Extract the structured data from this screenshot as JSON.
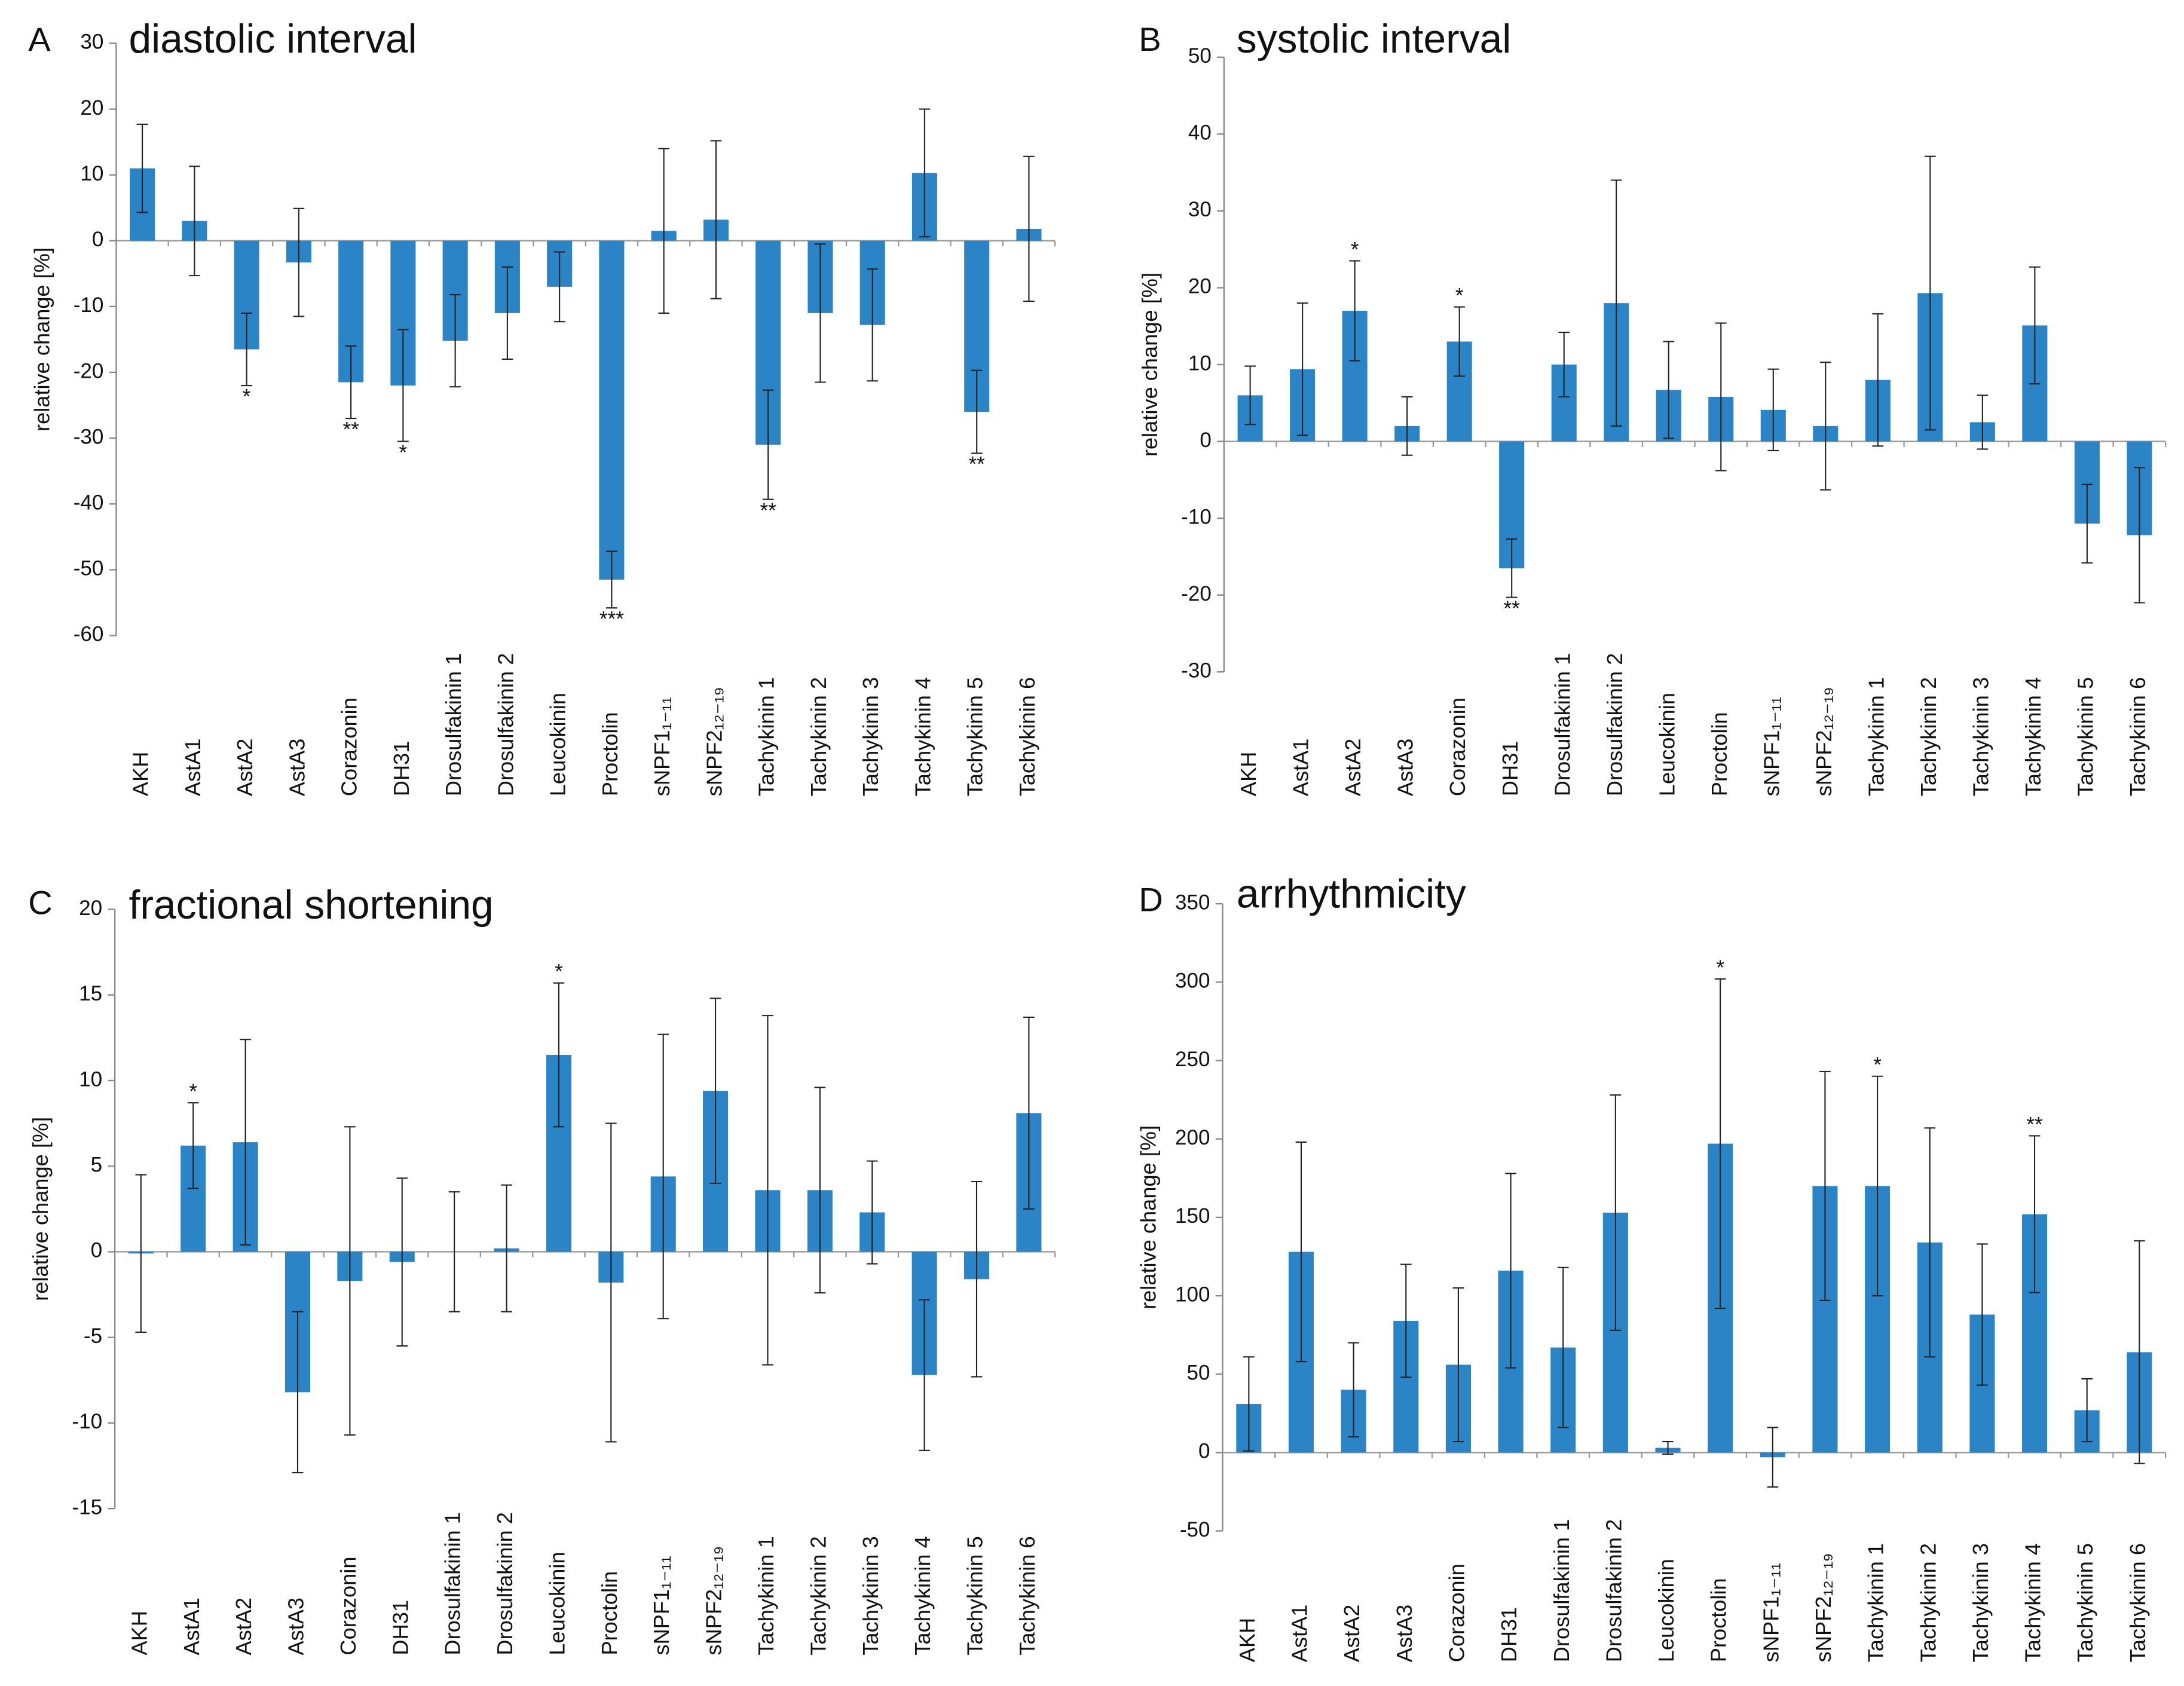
{
  "chart_data": [
    {
      "type": "bar",
      "panel": "A",
      "title": "diastolic interval",
      "y_label": "relative change [%]",
      "categories": [
        "AKH",
        "AstA1",
        "AstA2",
        "AstA3",
        "Corazonin",
        "DH31",
        "Drosulfakinin 1",
        "Drosulfakinin 2",
        "Leucokinin",
        "Proctolin",
        "sNPF1₁₋₁₁",
        "sNPF2₁₂₋₁₉",
        "Tachykinin 1",
        "Tachykinin 2",
        "Tachykinin 3",
        "Tachykinin 4",
        "Tachykinin 5",
        "Tachykinin 6"
      ],
      "series": [
        {
          "color": "#2b84c6",
          "values": [
            11,
            3,
            -16.5,
            -3.3,
            -21.5,
            -22,
            -15.2,
            -11,
            -7,
            -51.5,
            1.5,
            3.2,
            -31,
            -11,
            -12.8,
            10.3,
            -26,
            1.8
          ],
          "errors": [
            6.7,
            8.3,
            5.5,
            8.2,
            5.5,
            8.5,
            7,
            7,
            5.3,
            4.3,
            12.5,
            12,
            8.3,
            10.5,
            8.5,
            9.7,
            6.3,
            11
          ]
        }
      ],
      "significance": [
        null,
        null,
        "*",
        null,
        "**",
        "*",
        null,
        null,
        null,
        "***",
        null,
        null,
        "**",
        null,
        null,
        null,
        "**",
        null
      ],
      "ylim": [
        -60,
        30
      ],
      "yticks": [
        -60,
        -50,
        -40,
        -30,
        -20,
        -10,
        0,
        10,
        20,
        30
      ]
    },
    {
      "type": "bar",
      "panel": "B",
      "title": "systolic interval",
      "y_label": "relative change [%]",
      "categories": [
        "AKH",
        "AstA1",
        "AstA2",
        "AstA3",
        "Corazonin",
        "DH31",
        "Drosulfakinin 1",
        "Drosulfakinin 2",
        "Leucokinin",
        "Proctolin",
        "sNPF1₁₋₁₁",
        "sNPF2₁₂₋₁₉",
        "Tachykinin 1",
        "Tachykinin 2",
        "Tachykinin 3",
        "Tachykinin 4",
        "Tachykinin 5",
        "Tachykinin 6"
      ],
      "series": [
        {
          "color": "#2b84c6",
          "values": [
            6,
            9.4,
            17,
            2,
            13,
            -16.5,
            10,
            18,
            6.7,
            5.8,
            4.1,
            2,
            8,
            19.3,
            2.5,
            15.1,
            -10.7,
            -12.2
          ],
          "errors": [
            3.8,
            8.6,
            6.5,
            3.8,
            4.5,
            3.8,
            4.2,
            16,
            6.3,
            9.6,
            5.3,
            8.3,
            8.6,
            17.8,
            3.5,
            7.6,
            5.1,
            8.8
          ]
        }
      ],
      "significance": [
        null,
        null,
        "*",
        null,
        "*",
        "**",
        null,
        null,
        null,
        null,
        null,
        null,
        null,
        null,
        null,
        null,
        null,
        null
      ],
      "ylim": [
        -30,
        50
      ],
      "yticks": [
        -30,
        -20,
        -10,
        0,
        10,
        20,
        30,
        40,
        50
      ]
    },
    {
      "type": "bar",
      "panel": "C",
      "title": "fractional shortening",
      "y_label": "relative change [%]",
      "categories": [
        "AKH",
        "AstA1",
        "AstA2",
        "AstA3",
        "Corazonin",
        "DH31",
        "Drosulfakinin 1",
        "Drosulfakinin 2",
        "Leucokinin",
        "Proctolin",
        "sNPF1₁₋₁₁",
        "sNPF2₁₂₋₁₉",
        "Tachykinin 1",
        "Tachykinin 2",
        "Tachykinin 3",
        "Tachykinin 4",
        "Tachykinin 5",
        "Tachykinin 6"
      ],
      "series": [
        {
          "color": "#2b84c6",
          "values": [
            -0.1,
            6.2,
            6.4,
            -8.2,
            -1.7,
            -0.6,
            0,
            0.2,
            11.5,
            -1.8,
            4.4,
            9.4,
            3.6,
            3.6,
            2.3,
            -7.2,
            -1.6,
            8.1
          ],
          "errors": [
            4.6,
            2.5,
            6,
            4.7,
            9,
            4.9,
            3.5,
            3.7,
            4.2,
            9.3,
            8.3,
            5.4,
            10.2,
            6,
            3,
            4.4,
            5.7,
            5.6
          ]
        }
      ],
      "significance": [
        null,
        "*",
        null,
        null,
        null,
        null,
        null,
        null,
        "*",
        null,
        null,
        null,
        null,
        null,
        null,
        null,
        null,
        null
      ],
      "ylim": [
        -15,
        20
      ],
      "yticks": [
        -15,
        -10,
        -5,
        0,
        5,
        10,
        15,
        20
      ]
    },
    {
      "type": "bar",
      "panel": "D",
      "title": "arrhythmicity",
      "y_label": "relative change [%]",
      "categories": [
        "AKH",
        "AstA1",
        "AstA2",
        "AstA3",
        "Corazonin",
        "DH31",
        "Drosulfakinin 1",
        "Drosulfakinin 2",
        "Leucokinin",
        "Proctolin",
        "sNPF1₁₋₁₁",
        "sNPF2₁₂₋₁₉",
        "Tachykinin 1",
        "Tachykinin 2",
        "Tachykinin 3",
        "Tachykinin 4",
        "Tachykinin 5",
        "Tachykinin 6"
      ],
      "series": [
        {
          "color": "#2b84c6",
          "values": [
            31,
            128,
            40,
            84,
            56,
            116,
            67,
            153,
            3,
            197,
            -3,
            170,
            170,
            134,
            88,
            152,
            27,
            64
          ],
          "errors": [
            30,
            70,
            30,
            36,
            49,
            62,
            51,
            75,
            4,
            105,
            19,
            73,
            70,
            73,
            45,
            50,
            20,
            71
          ]
        }
      ],
      "significance": [
        null,
        null,
        null,
        null,
        null,
        null,
        null,
        null,
        null,
        "*",
        null,
        null,
        "*",
        null,
        null,
        "**",
        null,
        null
      ],
      "ylim": [
        -50,
        350
      ],
      "yticks": [
        -50,
        0,
        50,
        100,
        150,
        200,
        250,
        300,
        350
      ]
    }
  ]
}
